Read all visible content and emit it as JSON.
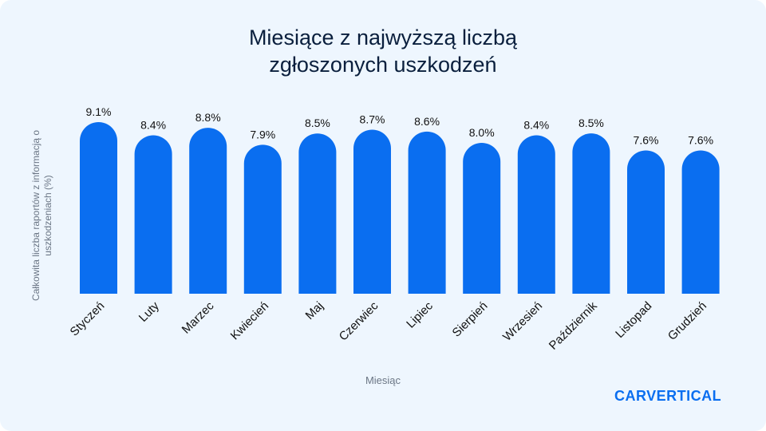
{
  "chart_data": {
    "type": "bar",
    "title_line1": "Miesiące z najwyższą liczbą",
    "title_line2": "zgłoszonych uszkodzeń",
    "xlabel": "Miesiąc",
    "ylabel": "Całkowita liczba raportów z informacją o uszkodzeniach (%)",
    "categories": [
      "Styczeń",
      "Luty",
      "Marzec",
      "Kwiecień",
      "Maj",
      "Czerwiec",
      "Lipiec",
      "Sierpień",
      "Wrzesień",
      "Październik",
      "Listopad",
      "Grudzień"
    ],
    "values": [
      9.1,
      8.4,
      8.8,
      7.9,
      8.5,
      8.7,
      8.6,
      8.0,
      8.4,
      8.5,
      7.6,
      7.6
    ],
    "value_labels": [
      "9.1%",
      "8.4%",
      "8.8%",
      "7.9%",
      "8.5%",
      "8.7%",
      "8.6%",
      "8.0%",
      "8.4%",
      "8.5%",
      "7.6%",
      "7.6%"
    ],
    "ylim": [
      0,
      9.1
    ],
    "grid": false,
    "bar_color": "#0a6ef0"
  },
  "logo": "carVertical"
}
